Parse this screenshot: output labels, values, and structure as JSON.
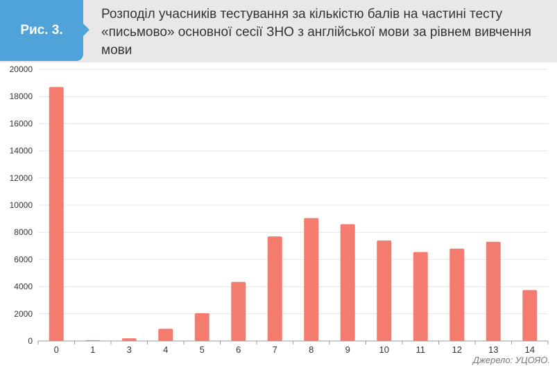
{
  "header": {
    "badge": "Рис. 3.",
    "title": "Розподіл учасників тестування за кількістю балів на частині тесту «письмово» основної сесії ЗНО з англійської мови за рівнем вивчення мови"
  },
  "source": "Джерело: УЦОЯО.",
  "colors": {
    "bar": "#f47c6e",
    "header_bg": "#e8e8e8",
    "badge": "#4fa3d8"
  },
  "chart_data": {
    "type": "bar",
    "title": "",
    "xlabel": "",
    "ylabel": "",
    "categories": [
      "0",
      "1",
      "3",
      "4",
      "5",
      "6",
      "7",
      "8",
      "9",
      "10",
      "11",
      "12",
      "13",
      "14"
    ],
    "values": [
      18700,
      60,
      200,
      900,
      2050,
      4350,
      7700,
      9050,
      8600,
      7400,
      6550,
      6800,
      7300,
      3750
    ],
    "ylim": [
      0,
      20000
    ],
    "yticks": [
      "0",
      "2000",
      "4000",
      "6000",
      "8000",
      "10000",
      "12000",
      "14000",
      "16000",
      "18000",
      "20000"
    ],
    "grid": true,
    "legend": "none"
  }
}
